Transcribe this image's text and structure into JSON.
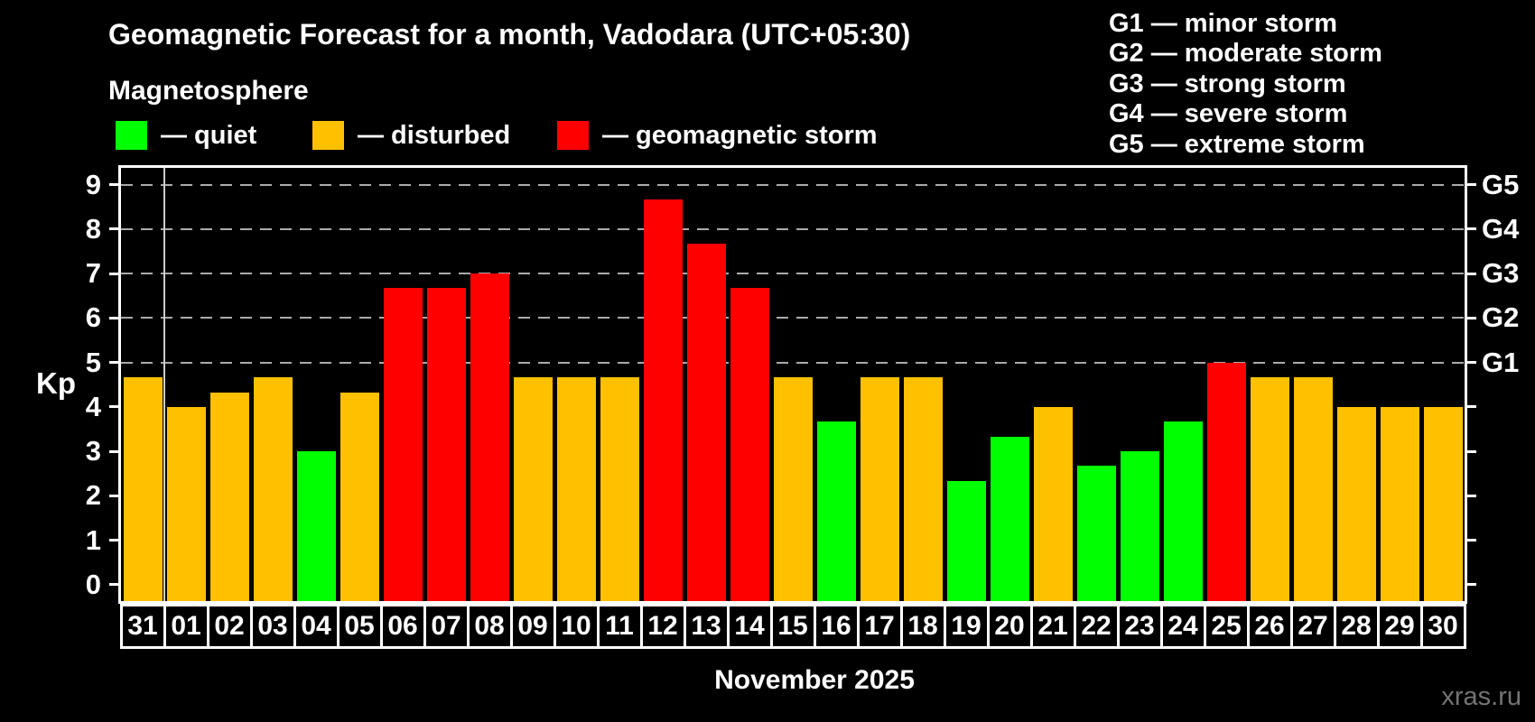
{
  "title": "Geomagnetic Forecast for a month, Vadodara (UTC+05:30)",
  "subtitle": "Magnetosphere",
  "legend": {
    "items": [
      {
        "state": "quiet",
        "label": "— quiet"
      },
      {
        "state": "disturbed",
        "label": "— disturbed"
      },
      {
        "state": "storm",
        "label": "— geomagnetic storm"
      }
    ]
  },
  "g_legend": {
    "items": [
      "G1 — minor storm",
      "G2 — moderate storm",
      "G3 — strong storm",
      "G4 — severe storm",
      "G5 — extreme storm"
    ]
  },
  "colors": {
    "quiet": "#00ff00",
    "disturbed": "#ffc000",
    "storm": "#ff0000",
    "frame": "#ffffff",
    "grid": "#ababab",
    "separator": "#cccccc",
    "watermark": "#747474",
    "background": "#000000"
  },
  "axis": {
    "kp_label": "Kp",
    "y_ticks": [
      0,
      1,
      2,
      3,
      4,
      5,
      6,
      7,
      8,
      9
    ],
    "g_labels": [
      {
        "kp": 5,
        "label": "G1"
      },
      {
        "kp": 6,
        "label": "G2"
      },
      {
        "kp": 7,
        "label": "G3"
      },
      {
        "kp": 8,
        "label": "G4"
      },
      {
        "kp": 9,
        "label": "G5"
      }
    ],
    "xlabel": "November 2025"
  },
  "watermark": "xras.ru",
  "chart_data": {
    "type": "bar",
    "title": "Geomagnetic Forecast for a month, Vadodara (UTC+05:30)",
    "subtitle": "Magnetosphere",
    "ylabel": "Kp",
    "xlabel": "November 2025",
    "ylim": [
      0,
      9
    ],
    "gridlines_at": [
      5,
      6,
      7,
      8,
      9
    ],
    "grid": "dashed horizontal at storm levels only",
    "legend_position": "top-left",
    "month_separator_after_category": "31",
    "categories": [
      "31",
      "01",
      "02",
      "03",
      "04",
      "05",
      "06",
      "07",
      "08",
      "09",
      "10",
      "11",
      "12",
      "13",
      "14",
      "15",
      "16",
      "17",
      "18",
      "19",
      "20",
      "21",
      "22",
      "23",
      "24",
      "25",
      "26",
      "27",
      "28",
      "29",
      "30"
    ],
    "values": [
      4.67,
      4.0,
      4.33,
      4.67,
      3.0,
      4.33,
      6.67,
      6.67,
      7.0,
      4.67,
      4.67,
      4.67,
      8.67,
      7.67,
      6.67,
      4.67,
      3.67,
      4.67,
      4.67,
      2.33,
      3.33,
      4.0,
      2.67,
      3.0,
      3.67,
      5.0,
      4.67,
      4.67,
      4.0,
      4.0,
      4.0
    ],
    "states": [
      "disturbed",
      "disturbed",
      "disturbed",
      "disturbed",
      "quiet",
      "disturbed",
      "storm",
      "storm",
      "storm",
      "disturbed",
      "disturbed",
      "disturbed",
      "storm",
      "storm",
      "storm",
      "disturbed",
      "quiet",
      "disturbed",
      "disturbed",
      "quiet",
      "quiet",
      "disturbed",
      "quiet",
      "quiet",
      "quiet",
      "storm",
      "disturbed",
      "disturbed",
      "disturbed",
      "disturbed",
      "disturbed"
    ]
  }
}
